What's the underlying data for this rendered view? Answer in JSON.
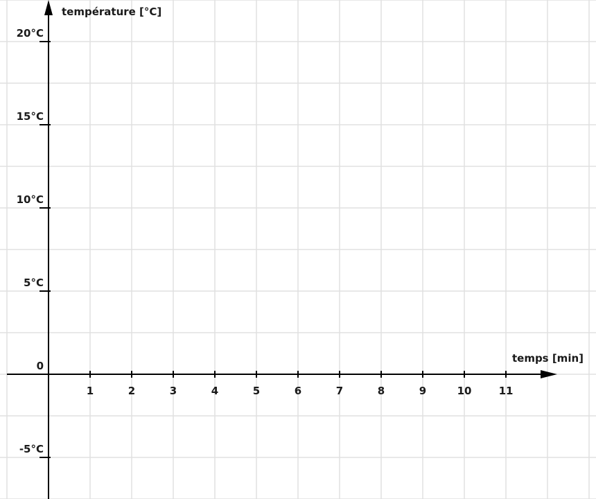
{
  "chart_data": {
    "type": "line",
    "title": "",
    "xlabel": "temps [min]",
    "ylabel": "température [°C]",
    "xlim": [
      -1,
      12
    ],
    "ylim": [
      -7.5,
      22.5
    ],
    "grid": true,
    "x_ticks": [
      {
        "value": 1,
        "label": "1"
      },
      {
        "value": 2,
        "label": "2"
      },
      {
        "value": 3,
        "label": "3"
      },
      {
        "value": 4,
        "label": "4"
      },
      {
        "value": 5,
        "label": "5"
      },
      {
        "value": 6,
        "label": "6"
      },
      {
        "value": 7,
        "label": "7"
      },
      {
        "value": 8,
        "label": "8"
      },
      {
        "value": 9,
        "label": "9"
      },
      {
        "value": 10,
        "label": "10"
      },
      {
        "value": 11,
        "label": "11"
      }
    ],
    "y_ticks": [
      {
        "value": 20,
        "label": "20°C"
      },
      {
        "value": 15,
        "label": "15°C"
      },
      {
        "value": 10,
        "label": "10°C"
      },
      {
        "value": 5,
        "label": "5°C"
      },
      {
        "value": 0,
        "label": "0"
      },
      {
        "value": -5,
        "label": "-5°C"
      }
    ],
    "series": []
  },
  "colors": {
    "grid": "#e0e0e0",
    "axis": "#000000",
    "text": "#1a1a1a"
  }
}
